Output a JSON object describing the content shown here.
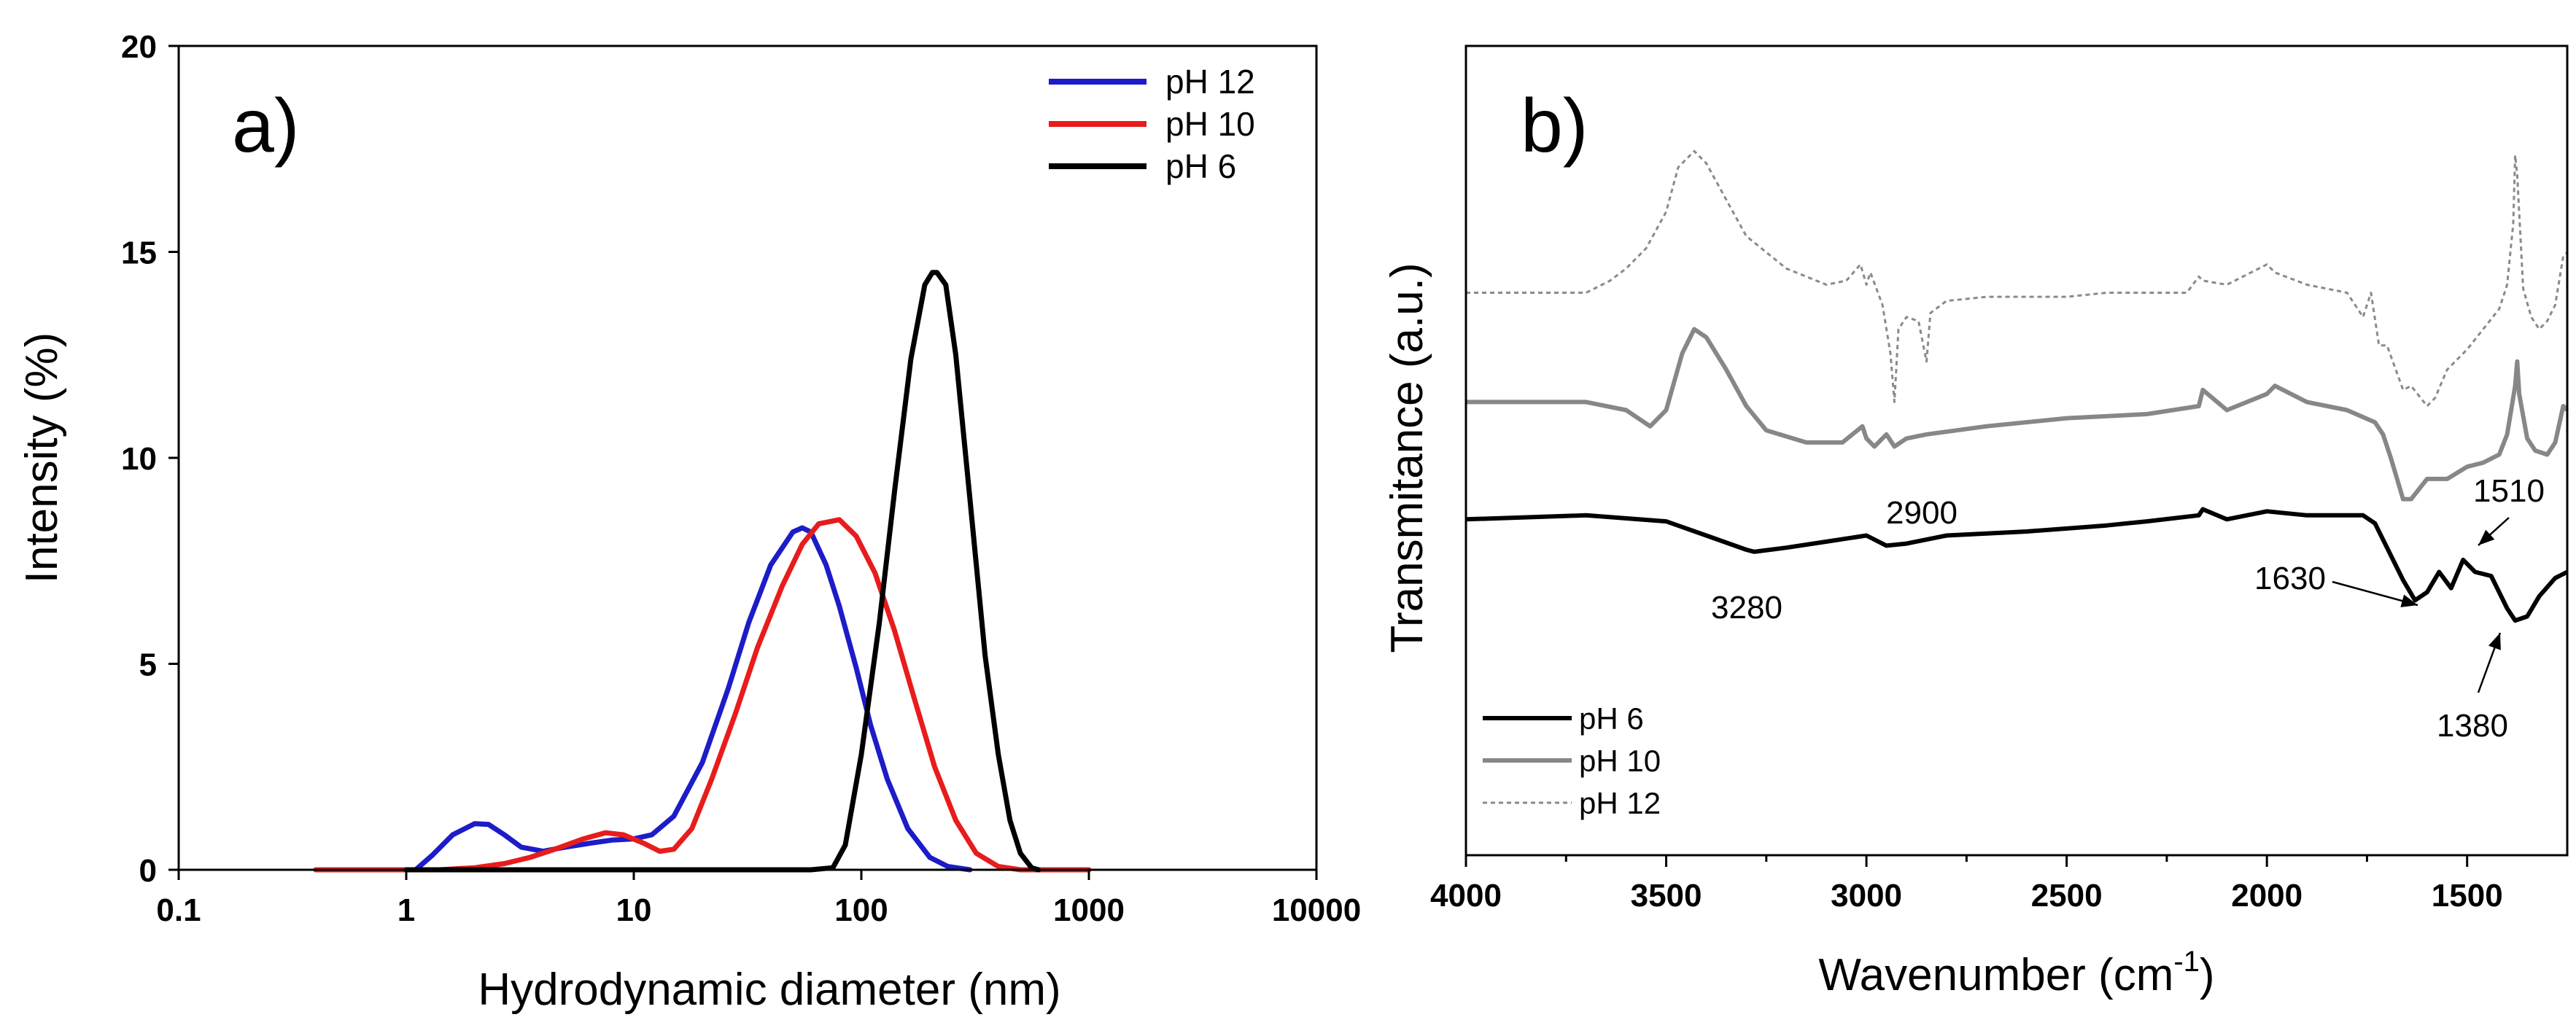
{
  "chart_data": [
    {
      "panel_label": "a)",
      "type": "line",
      "xscale": "log",
      "xlabel": "Hydrodynamic diameter (nm)",
      "ylabel": "Intensity (%)",
      "xlim": [
        0.1,
        10000
      ],
      "ylim": [
        0,
        20
      ],
      "xticks": [
        0.1,
        1,
        10,
        100,
        1000,
        10000
      ],
      "xtick_labels": [
        "0.1",
        "1",
        "10",
        "100",
        "1000",
        "10000"
      ],
      "yticks": [
        0,
        5,
        10,
        15,
        20
      ],
      "ytick_labels": [
        "0",
        "5",
        "10",
        "15",
        "20"
      ],
      "legend_position": "top-right",
      "series": [
        {
          "name": "pH 12",
          "color": "#1c1cc8",
          "x": [
            1.1,
            1.3,
            1.6,
            2.0,
            2.3,
            2.7,
            3.2,
            4.0,
            5.0,
            6.5,
            8.0,
            10,
            12,
            15,
            20,
            26,
            32,
            40,
            50,
            55,
            60,
            70,
            80,
            95,
            110,
            130,
            160,
            200,
            240,
            300
          ],
          "y": [
            0,
            0.35,
            0.85,
            1.12,
            1.1,
            0.85,
            0.55,
            0.45,
            0.55,
            0.65,
            0.72,
            0.75,
            0.85,
            1.3,
            2.6,
            4.4,
            6.0,
            7.4,
            8.2,
            8.3,
            8.2,
            7.4,
            6.4,
            4.9,
            3.5,
            2.2,
            1.0,
            0.3,
            0.08,
            0
          ]
        },
        {
          "name": "pH 10",
          "color": "#e81c1c",
          "x": [
            0.4,
            0.6,
            0.8,
            1.0,
            1.4,
            2.0,
            2.7,
            3.5,
            4.5,
            6.0,
            7.5,
            9.0,
            11,
            13,
            15,
            18,
            22,
            28,
            35,
            45,
            55,
            65,
            80,
            95,
            115,
            140,
            170,
            210,
            260,
            320,
            400,
            500,
            700,
            1000
          ],
          "y": [
            0,
            0,
            0,
            0,
            0,
            0.05,
            0.15,
            0.3,
            0.5,
            0.75,
            0.9,
            0.85,
            0.65,
            0.45,
            0.5,
            1.0,
            2.2,
            3.8,
            5.4,
            6.9,
            7.9,
            8.4,
            8.5,
            8.1,
            7.2,
            5.8,
            4.2,
            2.5,
            1.2,
            0.4,
            0.08,
            0,
            0,
            0
          ]
        },
        {
          "name": "pH 6",
          "color": "#000000",
          "x": [
            1,
            5,
            20,
            60,
            75,
            85,
            100,
            120,
            140,
            165,
            190,
            205,
            215,
            235,
            260,
            300,
            350,
            400,
            450,
            500,
            560,
            600
          ],
          "y": [
            0,
            0,
            0,
            0,
            0.05,
            0.6,
            2.8,
            6.0,
            9.2,
            12.4,
            14.2,
            14.5,
            14.5,
            14.2,
            12.5,
            9.0,
            5.2,
            2.8,
            1.2,
            0.4,
            0.05,
            0
          ]
        }
      ]
    },
    {
      "panel_label": "b)",
      "type": "line",
      "xlabel": "Wavenumber (cm",
      "xlabel_sup": "-1",
      "xlabel_end": ")",
      "ylabel": "Transmitance (a.u.)",
      "xlim": [
        4000,
        1250
      ],
      "x_reversed": true,
      "xticks": [
        4000,
        3500,
        3000,
        2500,
        2000,
        1500
      ],
      "xtick_labels": [
        "4000",
        "3500",
        "3000",
        "2500",
        "2000",
        "1500"
      ],
      "y_units": "arbitrary",
      "legend_position": "bottom-left",
      "annotations": [
        {
          "text": "3280",
          "x": 3280
        },
        {
          "text": "2900",
          "x": 2900
        },
        {
          "text": "1630",
          "x": 1630,
          "arrow": true
        },
        {
          "text": "1510",
          "x": 1510,
          "arrow": true
        },
        {
          "text": "1380",
          "x": 1380,
          "arrow": true
        }
      ],
      "series": [
        {
          "name": "pH 6",
          "color": "#000000",
          "dash": "solid",
          "x": [
            4000,
            3700,
            3500,
            3400,
            3300,
            3280,
            3200,
            3100,
            3000,
            2950,
            2900,
            2800,
            2600,
            2400,
            2300,
            2170,
            2160,
            2100,
            2000,
            1900,
            1760,
            1730,
            1700,
            1660,
            1630,
            1600,
            1570,
            1540,
            1510,
            1480,
            1440,
            1400,
            1380,
            1350,
            1320,
            1280,
            1250
          ],
          "y": [
            8.3,
            8.4,
            8.25,
            7.9,
            7.55,
            7.5,
            7.6,
            7.75,
            7.9,
            7.65,
            7.7,
            7.9,
            8.0,
            8.15,
            8.25,
            8.4,
            8.55,
            8.3,
            8.5,
            8.4,
            8.4,
            8.2,
            7.6,
            6.8,
            6.3,
            6.5,
            7.0,
            6.6,
            7.3,
            7.0,
            6.9,
            6.1,
            5.8,
            5.9,
            6.4,
            6.85,
            7.0
          ]
        },
        {
          "name": "pH 10",
          "color": "#878787",
          "dash": "solid",
          "x": [
            4000,
            3700,
            3600,
            3540,
            3500,
            3460,
            3430,
            3400,
            3350,
            3300,
            3250,
            3150,
            3060,
            3010,
            3000,
            2980,
            2950,
            2930,
            2900,
            2850,
            2700,
            2500,
            2300,
            2170,
            2160,
            2100,
            2000,
            1980,
            1900,
            1800,
            1730,
            1710,
            1690,
            1660,
            1640,
            1600,
            1550,
            1500,
            1460,
            1420,
            1400,
            1380,
            1375,
            1370,
            1350,
            1330,
            1300,
            1280,
            1260,
            1250
          ],
          "y": [
            11.2,
            11.2,
            11.0,
            10.6,
            11.0,
            12.4,
            13.0,
            12.8,
            12.0,
            11.1,
            10.5,
            10.2,
            10.2,
            10.6,
            10.3,
            10.1,
            10.4,
            10.1,
            10.3,
            10.4,
            10.6,
            10.8,
            10.9,
            11.1,
            11.5,
            11.0,
            11.4,
            11.6,
            11.2,
            11.0,
            10.7,
            10.4,
            9.8,
            8.8,
            8.8,
            9.3,
            9.3,
            9.6,
            9.7,
            9.9,
            10.4,
            11.6,
            12.2,
            11.4,
            10.3,
            10.0,
            9.9,
            10.2,
            11.1,
            11.0
          ]
        },
        {
          "name": "pH 12",
          "color": "#8a8a8a",
          "dash": "dotted",
          "x": [
            4000,
            3700,
            3640,
            3600,
            3550,
            3500,
            3470,
            3430,
            3400,
            3350,
            3300,
            3200,
            3100,
            3050,
            3015,
            3000,
            2990,
            2960,
            2940,
            2930,
            2920,
            2900,
            2870,
            2850,
            2840,
            2800,
            2700,
            2500,
            2400,
            2200,
            2170,
            2160,
            2100,
            2000,
            1980,
            1900,
            1800,
            1760,
            1740,
            1720,
            1700,
            1660,
            1640,
            1600,
            1580,
            1550,
            1500,
            1460,
            1420,
            1400,
            1385,
            1380,
            1375,
            1360,
            1340,
            1320,
            1300,
            1280,
            1260,
            1250
          ],
          "y": [
            13.9,
            13.9,
            14.2,
            14.5,
            15.0,
            15.9,
            17.0,
            17.4,
            17.1,
            16.2,
            15.3,
            14.5,
            14.1,
            14.2,
            14.6,
            14.1,
            14.4,
            13.6,
            12.4,
            11.2,
            13.0,
            13.3,
            13.2,
            12.2,
            13.4,
            13.7,
            13.8,
            13.8,
            13.9,
            13.9,
            14.3,
            14.2,
            14.1,
            14.6,
            14.4,
            14.1,
            13.9,
            13.3,
            13.9,
            12.6,
            12.6,
            11.5,
            11.6,
            11.1,
            11.3,
            12.0,
            12.5,
            13.0,
            13.5,
            14.1,
            15.6,
            17.3,
            16.8,
            14.0,
            13.3,
            13.0,
            13.2,
            13.6,
            14.8,
            14.9
          ]
        }
      ]
    }
  ]
}
